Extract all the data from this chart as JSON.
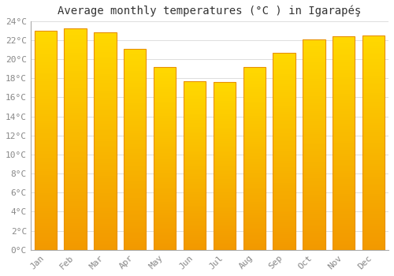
{
  "title": "Average monthly temperatures (°C ) in Igarapéş",
  "months": [
    "Jan",
    "Feb",
    "Mar",
    "Apr",
    "May",
    "Jun",
    "Jul",
    "Aug",
    "Sep",
    "Oct",
    "Nov",
    "Dec"
  ],
  "values": [
    23.0,
    23.2,
    22.8,
    21.1,
    19.2,
    17.7,
    17.6,
    19.2,
    20.7,
    22.1,
    22.4,
    22.5
  ],
  "bar_color": "#FFA500",
  "bar_color_top": "#FFD700",
  "bar_edge_color": "#E89000",
  "background_color": "#FFFFFF",
  "grid_color": "#DDDDDD",
  "ytick_step": 2,
  "ymin": 0,
  "ymax": 24,
  "title_fontsize": 10,
  "tick_fontsize": 8,
  "tick_color": "#888888",
  "title_color": "#333333"
}
